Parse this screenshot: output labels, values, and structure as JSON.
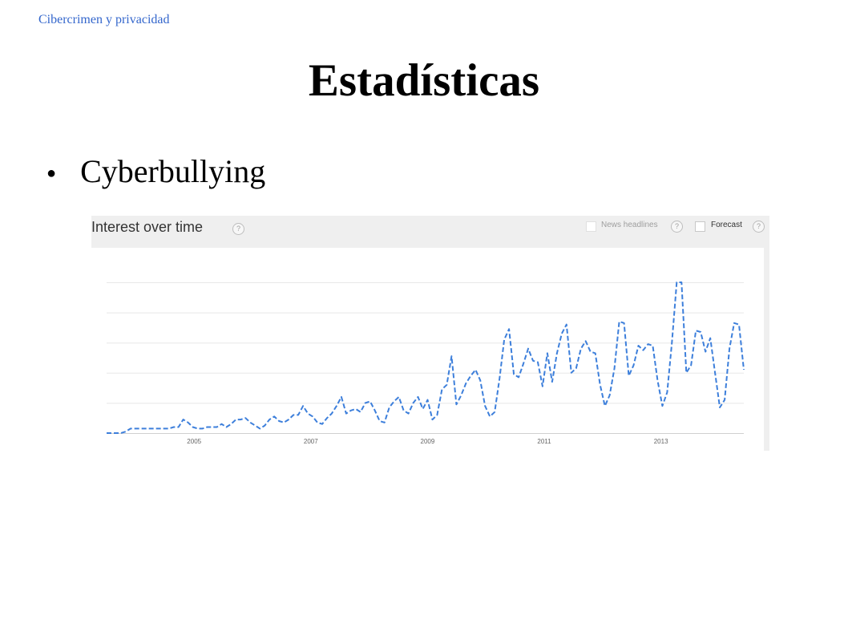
{
  "slide": {
    "header_link": "Cibercrimen y privacidad",
    "title": "Estadísticas",
    "bullet_text": "Cyberbullying"
  },
  "widget": {
    "title": "Interest over time",
    "news_headlines_label": "News headlines",
    "forecast_label": "Forecast",
    "help_symbol": "?"
  },
  "colors": {
    "line": "#3d7fdb",
    "grid": "#e8e8e8",
    "header_bg": "#efefef",
    "link": "#3366cc"
  },
  "chart_data": {
    "type": "line",
    "title": "Interest over time",
    "xlabel": "",
    "ylabel": "",
    "x_ticks": [
      "2005",
      "2007",
      "2009",
      "2011",
      "2013"
    ],
    "x_range": [
      2004.0,
      2014.92
    ],
    "ylim": [
      0,
      100
    ],
    "grid": true,
    "line_style": "dashed",
    "series": [
      {
        "values": [
          0,
          0,
          0,
          0,
          1,
          3,
          3,
          3,
          3,
          3,
          3,
          3,
          3,
          3,
          4,
          4,
          9,
          7,
          4,
          3,
          3,
          4,
          4,
          4,
          6,
          4,
          6,
          9,
          9,
          10,
          7,
          5,
          3,
          5,
          9,
          11,
          8,
          7,
          9,
          12,
          12,
          18,
          13,
          11,
          7,
          6,
          10,
          13,
          18,
          24,
          13,
          15,
          16,
          14,
          20,
          21,
          15,
          8,
          7,
          17,
          21,
          24,
          15,
          13,
          20,
          24,
          16,
          22,
          9,
          12,
          29,
          32,
          51,
          19,
          25,
          33,
          38,
          42,
          35,
          18,
          11,
          14,
          36,
          62,
          69,
          39,
          37,
          46,
          56,
          48,
          47,
          31,
          53,
          34,
          53,
          66,
          72,
          40,
          43,
          56,
          61,
          54,
          53,
          32,
          18,
          25,
          43,
          74,
          73,
          38,
          45,
          58,
          55,
          59,
          58,
          35,
          18,
          27,
          60,
          100,
          100,
          40,
          45,
          68,
          67,
          54,
          63,
          40,
          17,
          22,
          56,
          73,
          72,
          42
        ]
      }
    ]
  }
}
